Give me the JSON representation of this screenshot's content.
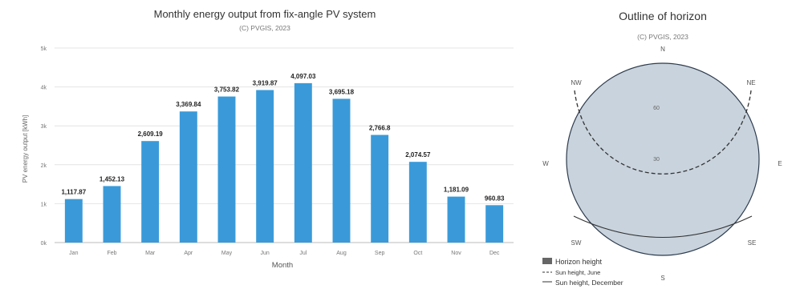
{
  "chart_data": [
    {
      "type": "bar",
      "title": "Monthly energy output from fix-angle PV system",
      "subtitle": "(C) PVGIS, 2023",
      "xlabel": "Month",
      "ylabel": "PV energy output [kWh]",
      "categories": [
        "Jan",
        "Feb",
        "Mar",
        "Apr",
        "May",
        "Jun",
        "Jul",
        "Aug",
        "Sep",
        "Oct",
        "Nov",
        "Dec"
      ],
      "values": [
        1117.87,
        1452.13,
        2609.19,
        3369.84,
        3753.82,
        3919.87,
        4097.03,
        3695.18,
        2766.8,
        2074.57,
        1181.09,
        960.83
      ],
      "value_labels": [
        "1,117.87",
        "1,452.13",
        "2,609.19",
        "3,369.84",
        "3,753.82",
        "3,919.87",
        "4,097.03",
        "3,695.18",
        "2,766.8",
        "2,074.57",
        "1,181.09",
        "960.83"
      ],
      "y_ticks": [
        0,
        1000,
        2000,
        3000,
        4000,
        5000
      ],
      "y_tick_labels": [
        "0k",
        "1k",
        "2k",
        "3k",
        "4k",
        "5k"
      ],
      "ylim": [
        0,
        5000
      ],
      "grid": true,
      "bar_color": "#3a9ad9"
    },
    {
      "type": "polar",
      "title": "Outline of horizon",
      "subtitle": "(C) PVGIS, 2023",
      "compass": [
        "N",
        "NE",
        "E",
        "SE",
        "S",
        "SW",
        "W",
        "NW"
      ],
      "inner_labels": [
        "60",
        "30"
      ],
      "legend": [
        "Horizon height",
        "Sun height, June",
        "Sun height, December"
      ],
      "fill_color": "#c9d3dd",
      "outline_color": "#2d3b4d"
    }
  ]
}
